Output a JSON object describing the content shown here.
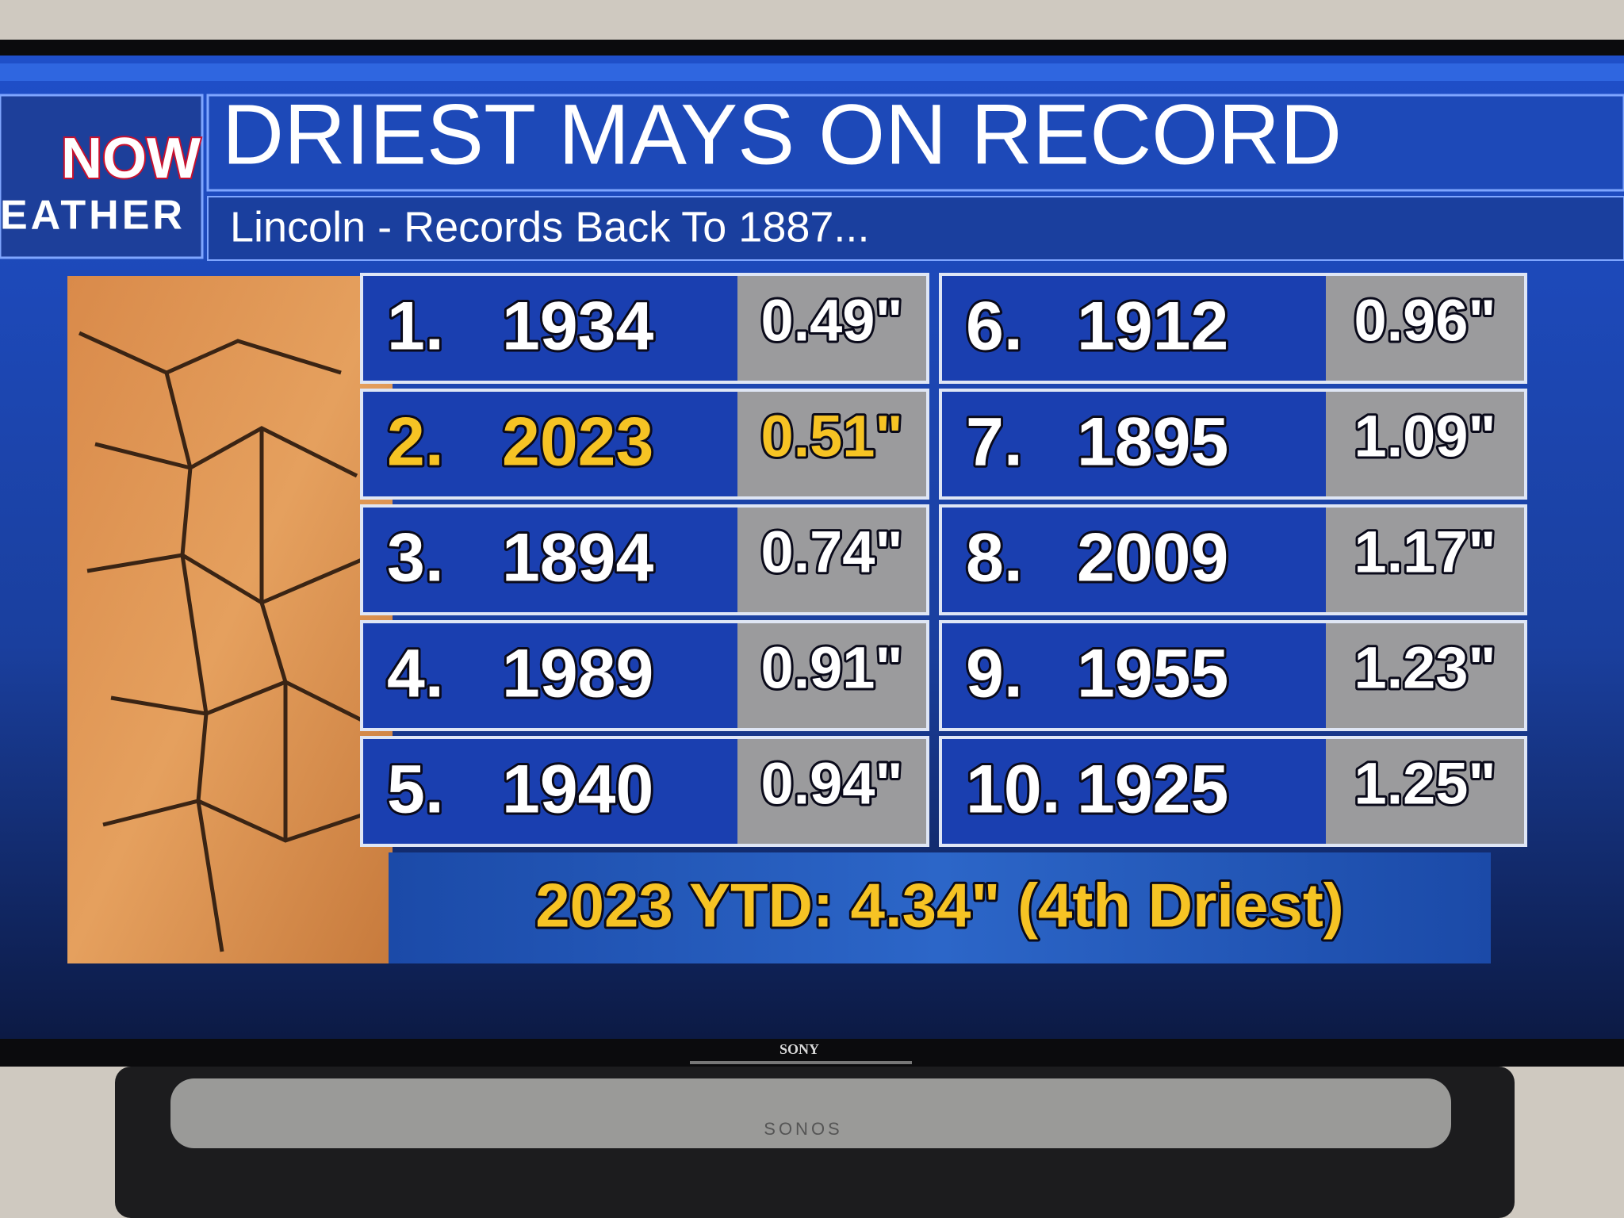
{
  "logo": {
    "line1": "NOW",
    "line2": "EATHER"
  },
  "header": {
    "title": "DRIEST MAYS ON RECORD",
    "subtitle": "Lincoln - Records Back To 1887..."
  },
  "table": {
    "rows": [
      {
        "rank": "1.",
        "year": "1934",
        "amount": "0.49\"",
        "color": "#ffffff"
      },
      {
        "rank": "2.",
        "year": "2023",
        "amount": "0.51\"",
        "color": "#f6c324"
      },
      {
        "rank": "3.",
        "year": "1894",
        "amount": "0.74\"",
        "color": "#ffffff"
      },
      {
        "rank": "4.",
        "year": "1989",
        "amount": "0.91\"",
        "color": "#ffffff"
      },
      {
        "rank": "5.",
        "year": "1940",
        "amount": "0.94\"",
        "color": "#ffffff"
      },
      {
        "rank": "6.",
        "year": "1912",
        "amount": "0.96\"",
        "color": "#ffffff"
      },
      {
        "rank": "7.",
        "year": "1895",
        "amount": "1.09\"",
        "color": "#ffffff"
      },
      {
        "rank": "8.",
        "year": "2009",
        "amount": "1.17\"",
        "color": "#ffffff"
      },
      {
        "rank": "9.",
        "year": "1955",
        "amount": "1.23\"",
        "color": "#ffffff"
      },
      {
        "rank": "10.",
        "year": "1925",
        "amount": "1.25\"",
        "color": "#ffffff"
      }
    ]
  },
  "footer": {
    "text": "2023 YTD: 4.34\" (4th Driest)"
  },
  "tv_brand": "SONY",
  "speaker_brand": "SONOS"
}
